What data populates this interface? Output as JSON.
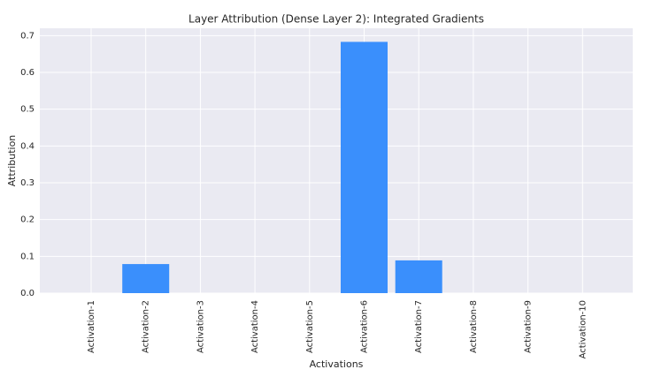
{
  "chart_data": {
    "type": "bar",
    "title": "Layer Attribution (Dense Layer 2): Integrated Gradients",
    "x_label": "Activations",
    "y_label": "Attribution",
    "categories": [
      "Activation-1",
      "Activation-2",
      "Activation-3",
      "Activation-4",
      "Activation-5",
      "Activation-6",
      "Activation-7",
      "Activation-8",
      "Activation-9",
      "Activation-10"
    ],
    "values": [
      0,
      0.079,
      0,
      0,
      0,
      0.683,
      0.089,
      0,
      0,
      0
    ],
    "color": "#3a8ffc",
    "ylim": [
      0,
      0.72
    ],
    "yticks": [
      {
        "value": 0,
        "label": "0.0"
      },
      0.1,
      0.2,
      0.3,
      0.4,
      0.5,
      0.6,
      0.7
    ],
    "grid": true
  }
}
